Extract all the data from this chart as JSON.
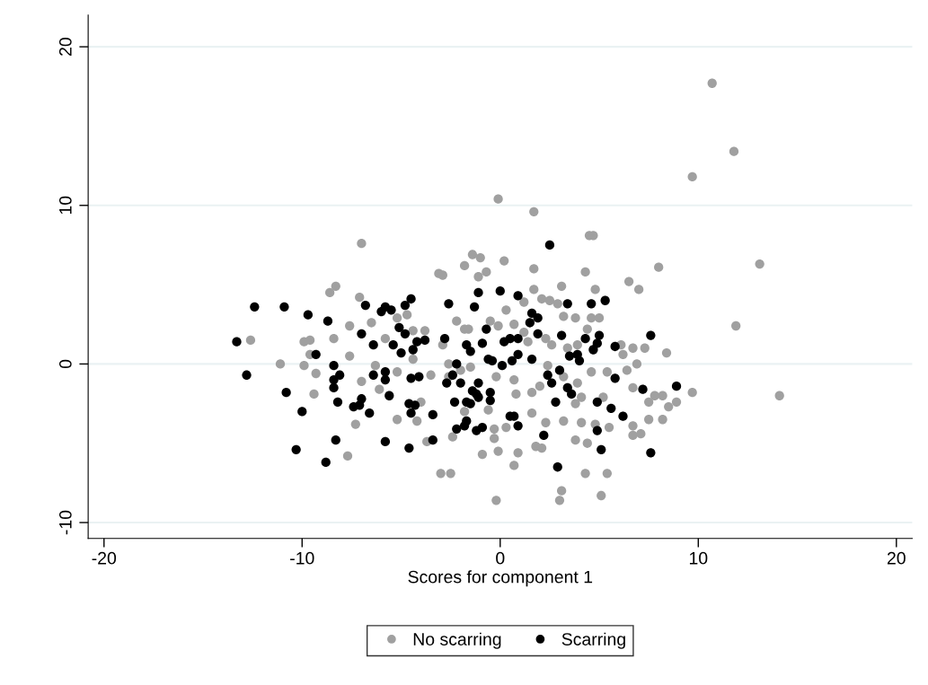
{
  "chart_data": {
    "type": "scatter",
    "xlabel": "Scores for component 1",
    "xlim": [
      -20.8,
      20.8
    ],
    "ylim": [
      -11,
      22
    ],
    "xticks": [
      -20,
      -10,
      0,
      10,
      20
    ],
    "yticks": [
      -10,
      0,
      10,
      20
    ],
    "grid": "y",
    "legend": "bottom",
    "marker": "circle",
    "series": [
      {
        "name": "No scarring",
        "color": "#a0a0a0",
        "x": [
          -12.6,
          -11.1,
          -9.9,
          -9.9,
          -9.6,
          -9.6,
          -9.3,
          -9.4,
          -8.6,
          -8.3,
          -8.4,
          -7.6,
          -7.6,
          -7.0,
          -7.1,
          -6.5,
          -7.3,
          -7.7,
          -7.0,
          -6.3,
          -6.1,
          -5.2,
          -5.2,
          -5.2,
          -4.7,
          -5.8,
          -4.4,
          -3.8,
          -4.4,
          -4.0,
          -3.5,
          -4.2,
          -3.1,
          -2.9,
          -3.0,
          -2.5,
          -3.7,
          -2.4,
          -2.2,
          -1.8,
          -1.4,
          -1.0,
          -1.1,
          -0.7,
          0.2,
          -0.2,
          -0.9,
          -0.1,
          -0.3,
          -0.3,
          -0.6,
          -1.8,
          -1.6,
          -2.0,
          -1.5,
          -1.8,
          -0.5,
          0.3,
          -0.2,
          -0.1,
          -2.6,
          -2.6,
          -2.9,
          -0.1,
          1.7,
          4.5,
          4.7,
          4.3,
          1.7,
          8.0,
          13.1,
          11.9,
          14.1,
          6.5,
          7.0,
          3.1,
          4.8,
          8.4,
          9.7,
          8.9,
          8.5,
          8.2,
          7.8,
          7.5,
          8.2,
          7.5,
          7.1,
          6.7,
          6.7,
          6.7,
          6.4,
          6.9,
          6.7,
          7.3,
          6.2,
          5.4,
          5.2,
          5.4,
          5.1,
          4.3,
          3.1,
          3.0,
          0.7,
          0.9,
          1.8,
          2.1,
          2.3,
          3.2,
          3.8,
          4.1,
          4.8,
          5.5,
          4.4,
          1.6,
          0.3,
          0.8,
          1.6,
          0.7,
          2.0,
          3.9,
          4.6,
          4.1,
          3.8,
          3.2,
          2.4,
          2.6,
          2.3,
          1.4,
          1.2,
          0.7,
          1.2,
          1.7,
          2.1,
          2.5,
          2.9,
          3.2,
          3.8,
          4.6,
          5.0,
          4.4,
          3.9,
          3.4,
          6.1,
          10.7,
          11.8,
          9.7
        ],
        "values": [
          1.5,
          0.0,
          -0.1,
          1.4,
          1.5,
          0.6,
          -0.6,
          -1.9,
          4.5,
          4.9,
          1.6,
          0.5,
          2.4,
          7.6,
          4.2,
          2.6,
          -3.8,
          -5.8,
          -1.1,
          -0.1,
          -1.6,
          -0.5,
          -3.5,
          2.9,
          3.1,
          1.6,
          2.1,
          2.1,
          0.3,
          -2.4,
          -0.7,
          -3.6,
          5.7,
          5.6,
          -6.9,
          -6.9,
          -4.9,
          -4.6,
          2.7,
          6.2,
          6.9,
          6.7,
          5.5,
          5.8,
          6.5,
          -8.6,
          -5.7,
          -5.5,
          -4.7,
          -4.1,
          -2.9,
          2.2,
          2.2,
          -0.4,
          -0.2,
          -3.0,
          2.7,
          3.4,
          -0.8,
          2.4,
          0.0,
          -0.8,
          1.2,
          10.4,
          9.6,
          8.1,
          8.1,
          5.8,
          6.0,
          6.1,
          6.3,
          2.4,
          -2.0,
          5.2,
          4.7,
          4.9,
          4.7,
          0.7,
          -1.8,
          -2.4,
          -2.7,
          -2.0,
          -2.0,
          -2.4,
          -3.5,
          -3.5,
          -4.4,
          -4.5,
          -3.9,
          -1.5,
          -0.4,
          0.0,
          1.0,
          1.0,
          0.6,
          -0.5,
          -2.1,
          -6.9,
          -8.3,
          -6.9,
          -8.0,
          -8.6,
          -6.4,
          -5.6,
          -5.2,
          -5.3,
          -3.7,
          -3.6,
          -4.8,
          -3.7,
          -3.8,
          -4.0,
          -5.0,
          -3.1,
          -4.0,
          -1.9,
          -1.8,
          -1.0,
          -1.4,
          -1.2,
          -0.5,
          -2.1,
          -2.5,
          -0.8,
          -0.1,
          1.2,
          1.6,
          1.4,
          2.0,
          2.5,
          3.9,
          4.7,
          4.1,
          4.0,
          3.8,
          3.0,
          2.9,
          2.9,
          2.9,
          2.2,
          1.2,
          1.0,
          1.2,
          17.7,
          13.4,
          11.8
        ]
      },
      {
        "name": "Scarring",
        "color": "#000000",
        "x": [
          -13.3,
          -12.4,
          -12.8,
          -10.9,
          -10.8,
          -9.7,
          -8.7,
          -9.3,
          -10.0,
          -10.3,
          -8.8,
          -8.3,
          -8.4,
          -8.1,
          -8.4,
          -8.4,
          -8.2,
          -7.0,
          -6.8,
          -6.0,
          -5.8,
          -5.5,
          -6.4,
          -5.4,
          -5.0,
          -5.1,
          -4.8,
          -4.8,
          -4.5,
          -4.4,
          -4.2,
          -3.8,
          -6.4,
          -5.8,
          -5.8,
          -7.0,
          -7.4,
          -7.1,
          -6.6,
          -5.6,
          -4.5,
          -4.1,
          -4.6,
          -4.3,
          -4.5,
          -3.4,
          -5.8,
          -4.6,
          -3.4,
          -2.6,
          -2.8,
          -2.7,
          -2.4,
          -2.2,
          -2.3,
          -2.0,
          -2.2,
          -1.8,
          -1.7,
          -1.7,
          -1.5,
          -1.7,
          -1.5,
          -1.4,
          -1.2,
          -1.1,
          -1.1,
          -1.2,
          -0.9,
          -1.1,
          -1.3,
          -0.7,
          -0.9,
          0.0,
          -0.6,
          -0.4,
          -0.5,
          -0.5,
          0.1,
          0.2,
          0.6,
          0.5,
          2.5,
          0.9,
          1.6,
          1.5,
          1.9,
          1.9,
          0.5,
          0.9,
          0.9,
          1.6,
          3.1,
          3.4,
          4.3,
          4.6,
          5.3,
          5.0,
          4.9,
          4.7,
          3.5,
          3.9,
          4.0,
          3.0,
          2.4,
          2.6,
          3.4,
          3.6,
          2.8,
          4.9,
          5.6,
          6.2,
          4.9,
          5.1,
          2.9,
          2.2,
          0.7,
          0.9,
          5.8,
          5.8,
          7.6,
          7.2,
          8.9,
          7.6
        ],
        "values": [
          1.4,
          3.6,
          -0.7,
          3.6,
          -1.8,
          3.1,
          2.7,
          0.6,
          -3.0,
          -5.4,
          -6.2,
          -4.8,
          -0.1,
          -0.7,
          -1.0,
          -1.5,
          -2.4,
          1.9,
          3.7,
          3.3,
          3.6,
          3.4,
          1.2,
          1.2,
          0.7,
          2.3,
          1.9,
          3.7,
          4.1,
          0.9,
          1.4,
          1.5,
          -0.7,
          -0.5,
          -1.0,
          -2.2,
          -2.7,
          -2.6,
          -3.1,
          -2.0,
          -0.9,
          -0.8,
          -2.5,
          -2.6,
          -3.1,
          -3.2,
          -4.9,
          -5.3,
          -4.8,
          3.8,
          1.6,
          -1.2,
          -0.7,
          0.0,
          -2.4,
          -1.2,
          -4.1,
          -3.9,
          -3.6,
          1.2,
          0.8,
          -2.4,
          -2.5,
          -1.7,
          -1.9,
          -2.1,
          -1.2,
          -4.2,
          -4.0,
          4.5,
          3.6,
          2.2,
          1.3,
          4.6,
          0.3,
          0.2,
          -1.8,
          -2.3,
          -0.1,
          1.4,
          0.2,
          -3.3,
          7.5,
          4.3,
          3.2,
          2.6,
          2.9,
          1.9,
          1.6,
          1.6,
          0.6,
          0.3,
          1.8,
          3.8,
          1.6,
          3.8,
          4.0,
          1.8,
          1.3,
          0.9,
          0.5,
          0.6,
          0.2,
          -0.4,
          -0.7,
          -1.2,
          -1.5,
          -1.9,
          -2.4,
          -2.4,
          -2.8,
          -3.3,
          -4.2,
          -5.4,
          -6.5,
          -4.5,
          -3.3,
          -3.9,
          1.1,
          -0.9,
          1.8,
          -1.6,
          -1.4,
          -5.6
        ]
      }
    ]
  }
}
